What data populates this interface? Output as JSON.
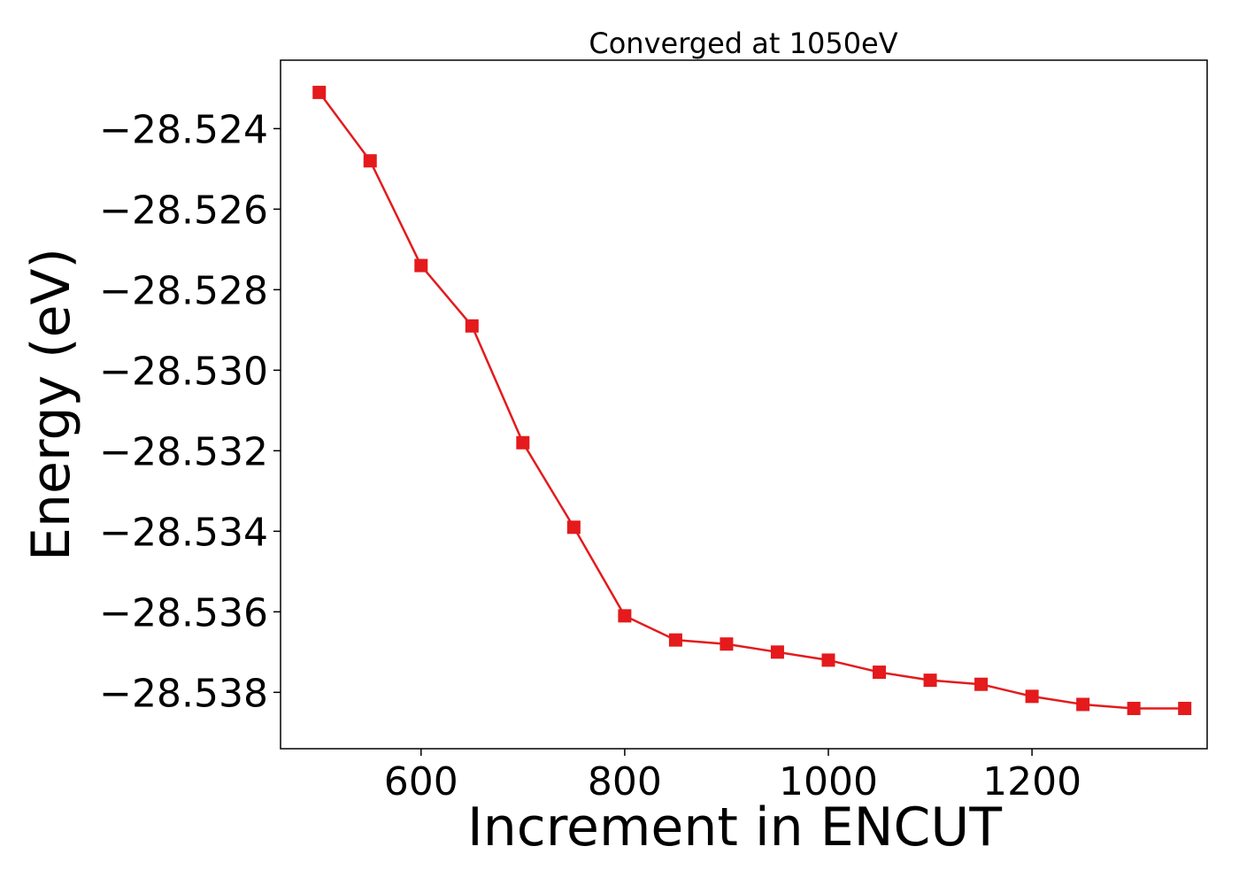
{
  "chart_data": {
    "type": "line",
    "title": "Converged at 1050eV",
    "xlabel": "Increment in ENCUT",
    "ylabel": "Energy (eV)",
    "xlim": [
      462,
      1372
    ],
    "ylim": [
      -28.5394,
      -28.5223
    ],
    "x_ticks": [
      600,
      800,
      1000,
      1200
    ],
    "y_ticks": [
      -28.524,
      -28.526,
      -28.528,
      -28.53,
      -28.532,
      -28.534,
      -28.536,
      -28.538
    ],
    "y_tick_labels": [
      "−28.524",
      "−28.526",
      "−28.528",
      "−28.530",
      "−28.532",
      "−28.534",
      "−28.536",
      "−28.538"
    ],
    "grid": false,
    "series": [
      {
        "color": "#e41a1c",
        "marker": "square",
        "x": [
          500,
          550,
          600,
          650,
          700,
          750,
          800,
          850,
          900,
          950,
          1000,
          1050,
          1100,
          1150,
          1200,
          1250,
          1300,
          1350
        ],
        "y": [
          -28.5231,
          -28.5248,
          -28.5274,
          -28.5289,
          -28.5318,
          -28.5339,
          -28.5361,
          -28.5367,
          -28.5368,
          -28.537,
          -28.5372,
          -28.5375,
          -28.5377,
          -28.5378,
          -28.5381,
          -28.5383,
          -28.5384,
          -28.5384
        ]
      }
    ]
  }
}
